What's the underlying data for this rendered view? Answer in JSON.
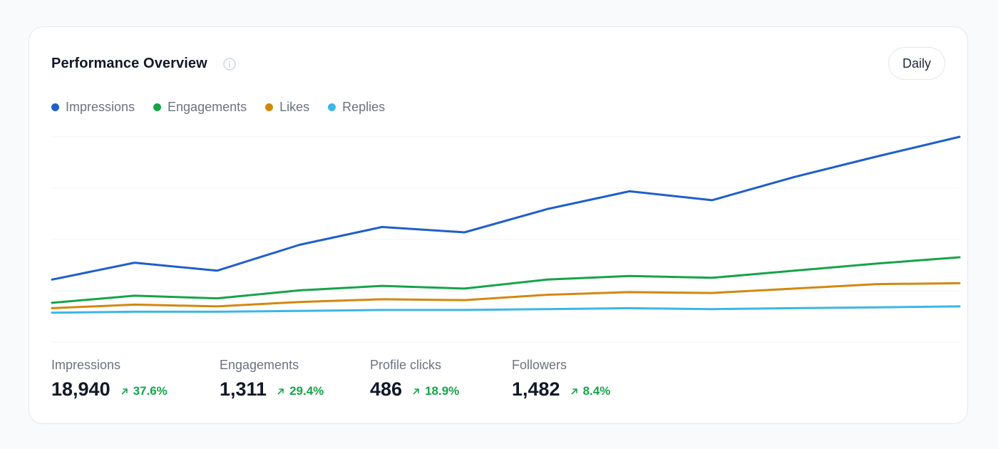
{
  "card": {
    "title": "Performance Overview",
    "period_label": "Daily"
  },
  "legend": [
    {
      "label": "Impressions",
      "color": "#1f5fc9"
    },
    {
      "label": "Engagements",
      "color": "#16a34a"
    },
    {
      "label": "Likes",
      "color": "#d4870f"
    },
    {
      "label": "Replies",
      "color": "#3bb6e8"
    }
  ],
  "chart_data": {
    "type": "line",
    "x": [
      1,
      2,
      3,
      4,
      5,
      6,
      7,
      8,
      9,
      10,
      11,
      12
    ],
    "ylim": [
      0,
      23
    ],
    "grid": true,
    "series": [
      {
        "name": "Impressions",
        "color": "#1f5fc9",
        "values": [
          7.0,
          8.9,
          8.0,
          10.9,
          12.9,
          12.3,
          14.9,
          16.9,
          15.9,
          18.5,
          20.8,
          23.0
        ]
      },
      {
        "name": "Engagements",
        "color": "#16a34a",
        "values": [
          4.4,
          5.2,
          4.9,
          5.8,
          6.3,
          6.0,
          7.0,
          7.4,
          7.2,
          8.0,
          8.8,
          9.5
        ]
      },
      {
        "name": "Likes",
        "color": "#d4870f",
        "values": [
          3.8,
          4.2,
          4.0,
          4.5,
          4.8,
          4.7,
          5.3,
          5.6,
          5.5,
          6.0,
          6.5,
          6.6
        ]
      },
      {
        "name": "Replies",
        "color": "#3bb6e8",
        "values": [
          3.3,
          3.4,
          3.4,
          3.5,
          3.6,
          3.6,
          3.7,
          3.8,
          3.7,
          3.8,
          3.9,
          4.0
        ]
      }
    ]
  },
  "stats": [
    {
      "label": "Impressions",
      "value": "18,940",
      "change": "37.6%"
    },
    {
      "label": "Engagements",
      "value": "1,311",
      "change": "29.4%"
    },
    {
      "label": "Profile clicks",
      "value": "486",
      "change": "18.9%"
    },
    {
      "label": "Followers",
      "value": "1,482",
      "change": "8.4%"
    }
  ]
}
